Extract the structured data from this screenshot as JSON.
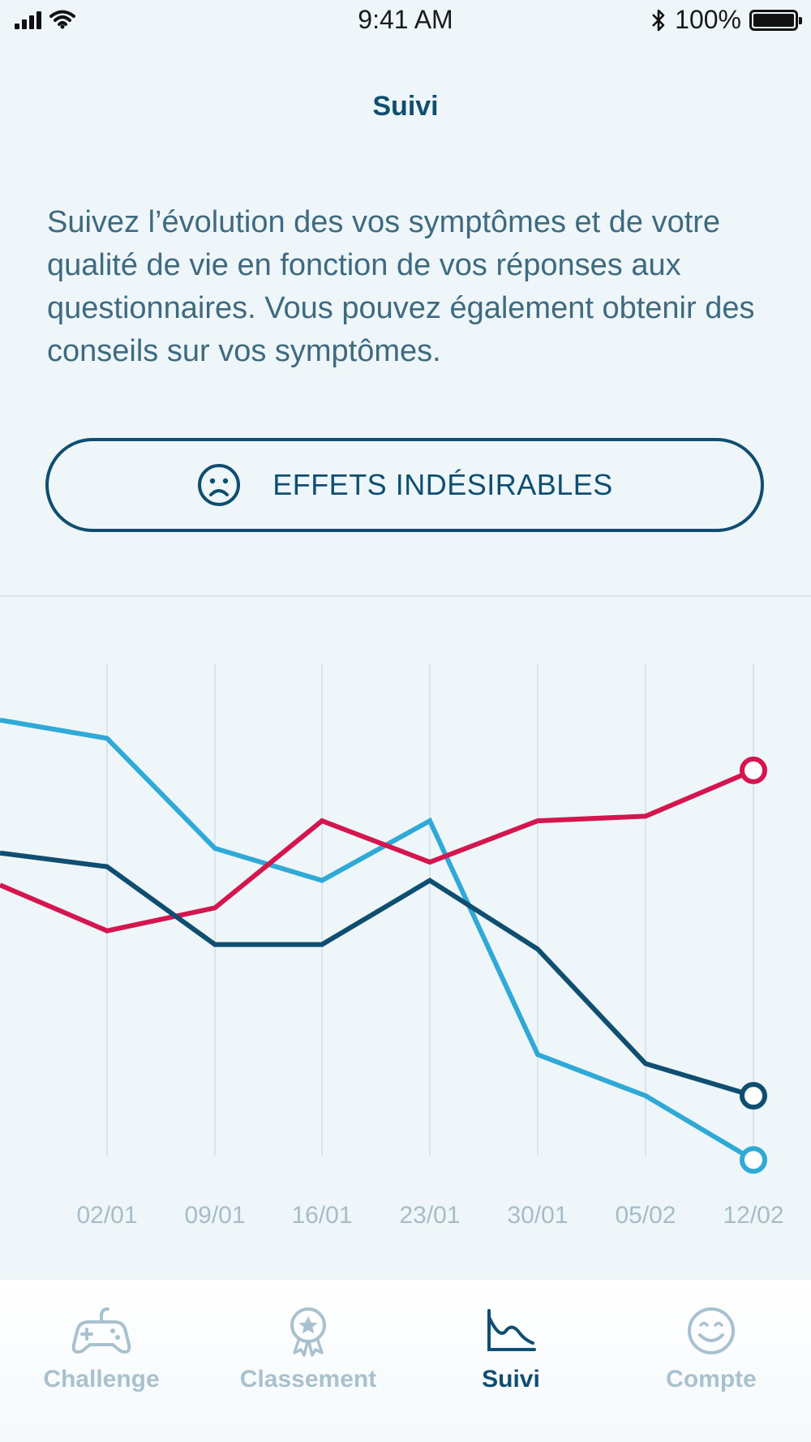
{
  "status_bar": {
    "time": "9:41 AM",
    "battery": "100%",
    "battery_level": 1.0
  },
  "header": {
    "title": "Suivi"
  },
  "intro": {
    "text": "Suivez l’évolution des vos symptômes et de votre qualité de vie en fonction de vos réponses aux questionnaires. Vous pouvez également obtenir des conseils sur vos symptômes."
  },
  "effects_button": {
    "label": "EFFETS INDÉSIRABLES",
    "icon": "sad-face-icon"
  },
  "chart_data": {
    "type": "line",
    "x": [
      "",
      "02/01",
      "09/01",
      "16/01",
      "23/01",
      "30/01",
      "05/02",
      "12/02"
    ],
    "tick_labels": [
      "02/01",
      "09/01",
      "16/01",
      "23/01",
      "30/01",
      "05/02",
      "12/02"
    ],
    "ylim": [
      0,
      100
    ],
    "grid": "vertical",
    "legend": "none",
    "series": [
      {
        "color": "#2fa9d6",
        "values": [
          88,
          84,
          60,
          53,
          66,
          15,
          6,
          -8
        ]
      },
      {
        "color": "#d4164f",
        "values": [
          52,
          42,
          47,
          66,
          57,
          66,
          67,
          77
        ]
      },
      {
        "color": "#0f4e70",
        "values": [
          59,
          56,
          39,
          39,
          53,
          38,
          13,
          6
        ]
      }
    ]
  },
  "tabbar": {
    "items": [
      {
        "label": "Challenge",
        "icon": "gamepad-icon",
        "active": false
      },
      {
        "label": "Classement",
        "icon": "medal-icon",
        "active": false
      },
      {
        "label": "Suivi",
        "icon": "chart-icon",
        "active": true
      },
      {
        "label": "Compte",
        "icon": "smile-icon",
        "active": false
      }
    ]
  }
}
